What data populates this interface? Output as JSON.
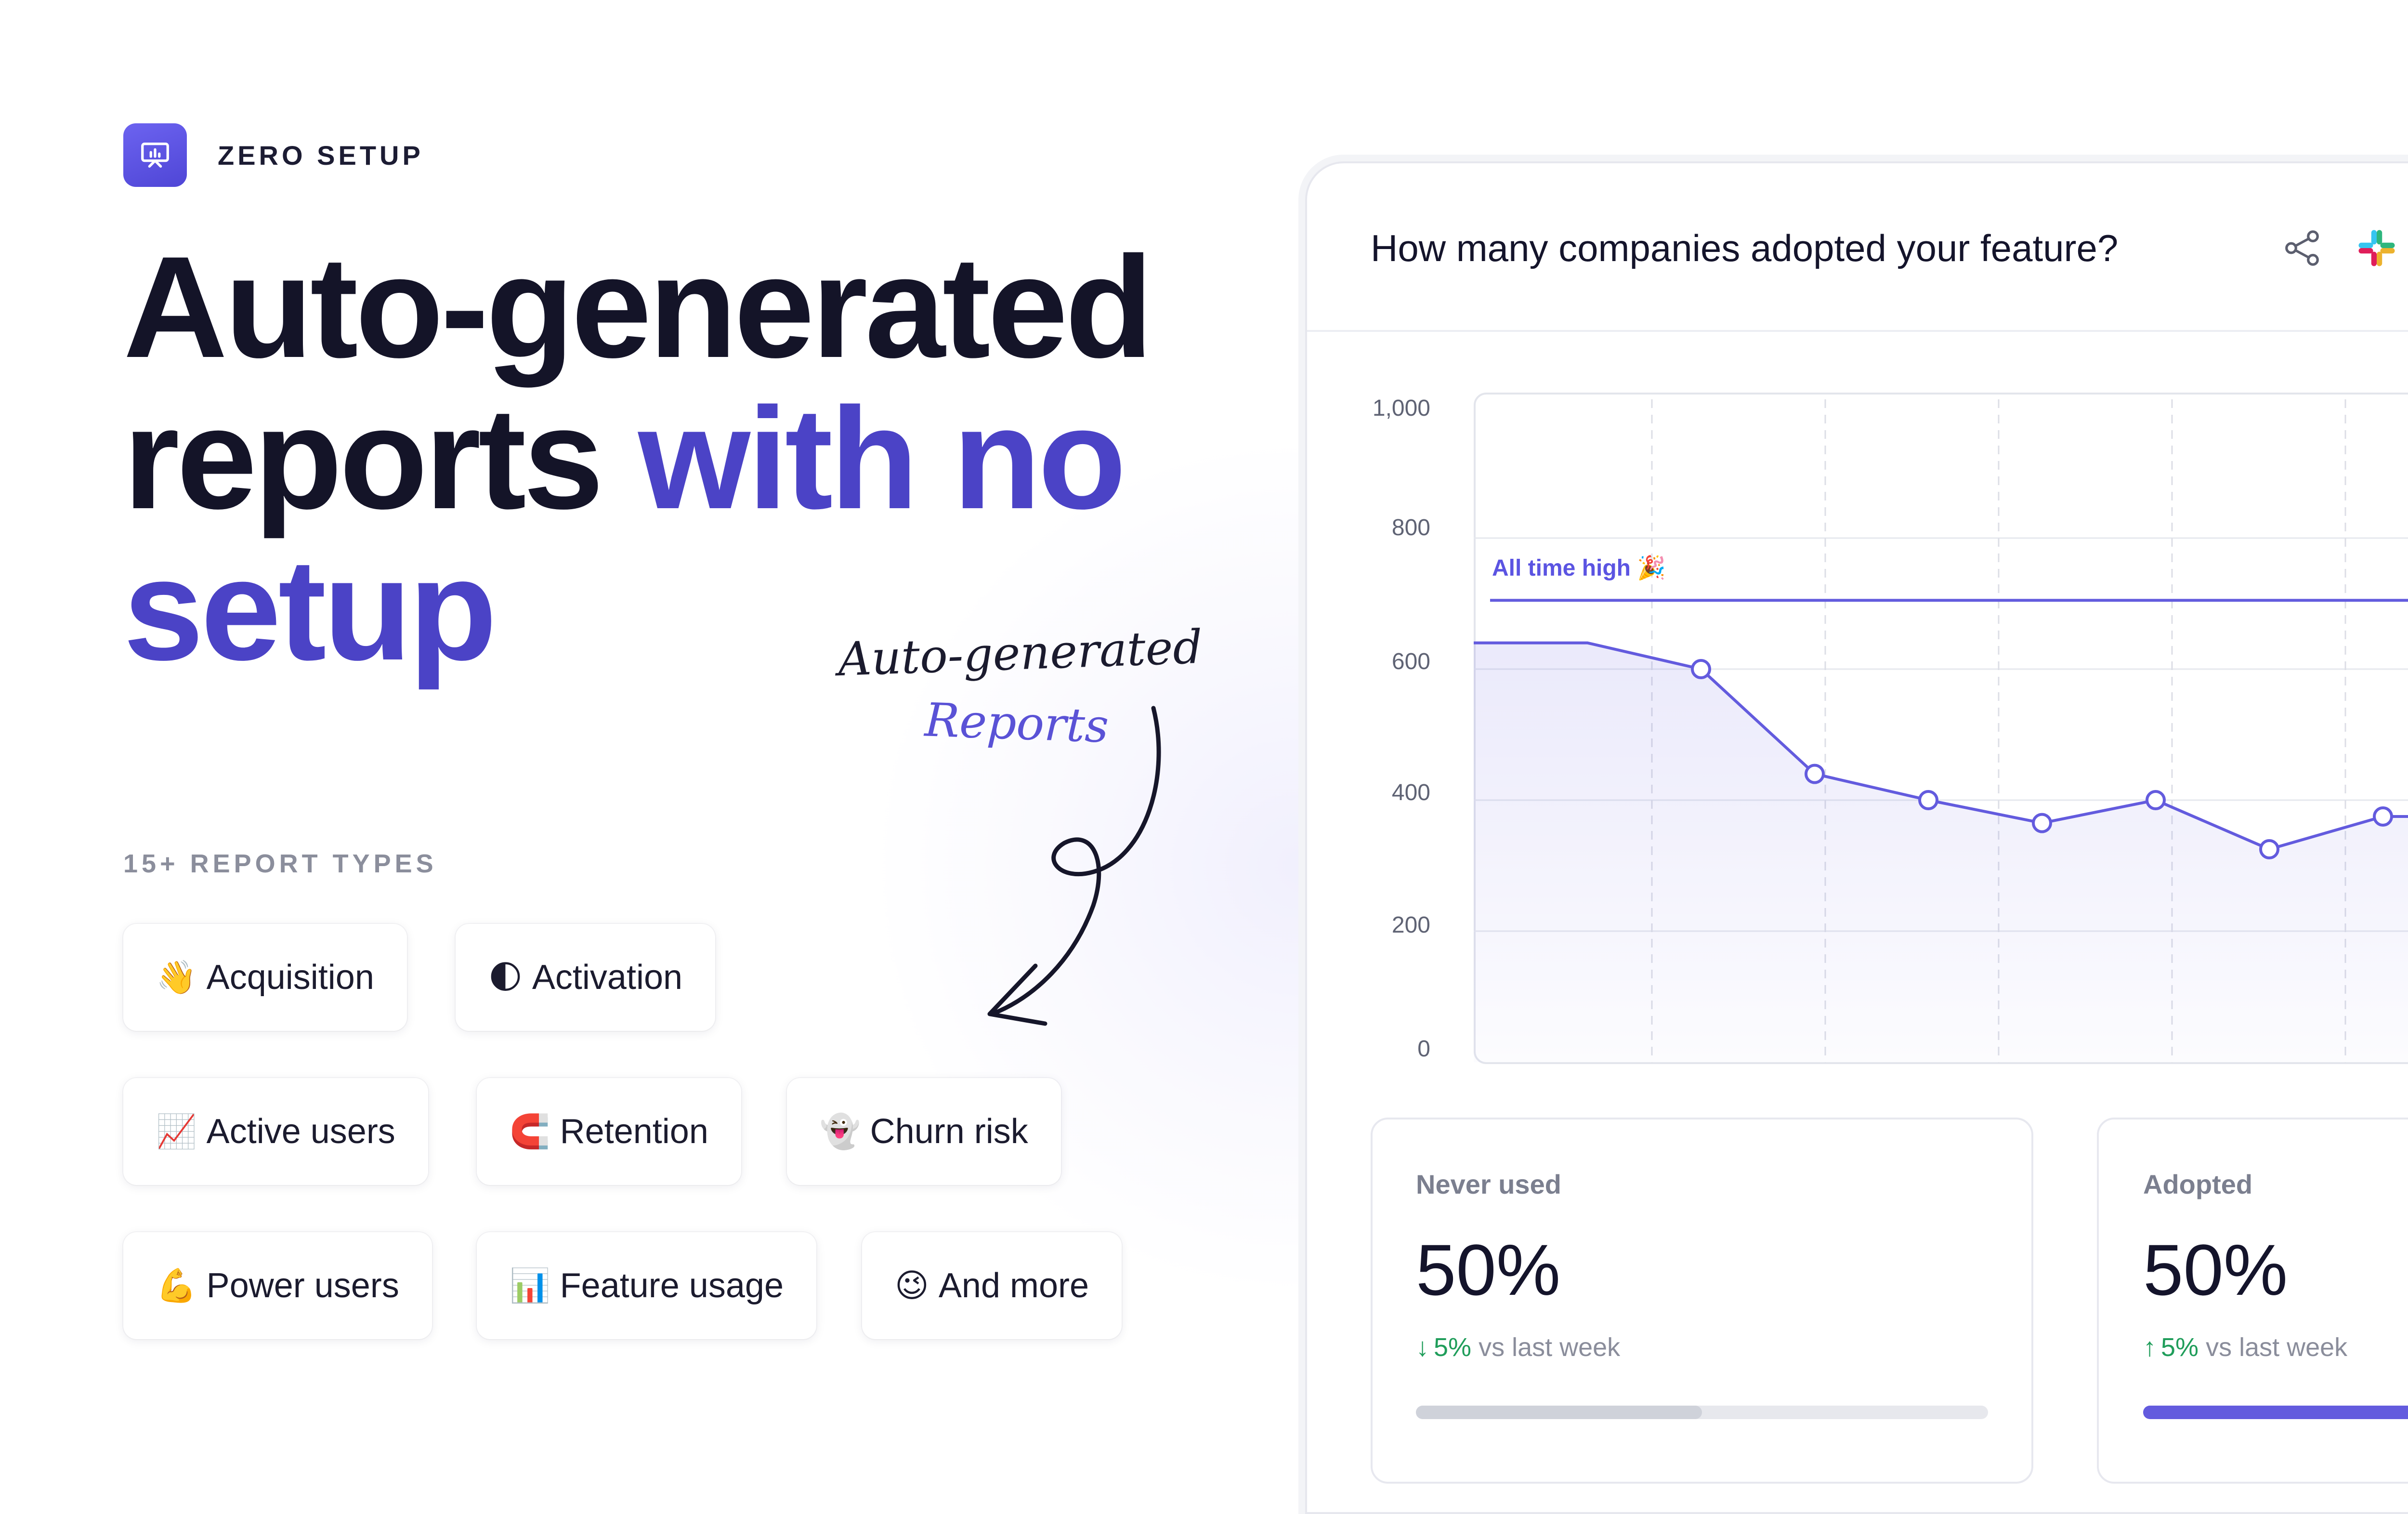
{
  "badge": {
    "icon": "presentation-chart-icon",
    "label": "ZERO SETUP",
    "color": "#5b52e6"
  },
  "headline": {
    "line1": "Auto-generated",
    "line2_plain": "reports ",
    "line2_accent": "with no",
    "line3_accent": "setup"
  },
  "annotation": {
    "line1": "Auto-generated",
    "line2": "Reports"
  },
  "report_types": {
    "label": "15+ REPORT TYPES",
    "chips": [
      {
        "emoji": "👋",
        "label": "Acquisition"
      },
      {
        "emoji": "🌓",
        "label": "Activation"
      },
      {
        "emoji": "📈",
        "label": "Active users"
      },
      {
        "emoji": "🧲",
        "label": "Retention"
      },
      {
        "emoji": "👻",
        "label": "Churn risk"
      },
      {
        "emoji": "💪",
        "label": "Power users"
      },
      {
        "emoji": "📊",
        "label": "Feature usage"
      },
      {
        "emoji": "😉",
        "label": "And more"
      }
    ]
  },
  "report_card": {
    "title": "How many companies adopted your feature?",
    "share_icon": "share-icon",
    "slack_icon": "slack-icon"
  },
  "chart_data": {
    "type": "area",
    "title": "",
    "y_ticks": [
      "1,000",
      "800",
      "600",
      "400",
      "200",
      "0"
    ],
    "ylim": [
      0,
      1000
    ],
    "series": [
      {
        "values": [
          640,
          640,
          600,
          440,
          400,
          365,
          400,
          325,
          375,
          375
        ]
      }
    ],
    "reference_line": {
      "label": "All time high 🎉",
      "value": 705
    },
    "grid": true,
    "line_color": "#635bde"
  },
  "stats": [
    {
      "label": "Never used",
      "value": "50%",
      "delta_arrow": "↓",
      "delta": "5%",
      "delta_suffix": "vs last week",
      "progress": 0.5,
      "bar_color": "#cfd2da"
    },
    {
      "label": "Adopted",
      "value": "50%",
      "delta_arrow": "↑",
      "delta": "5%",
      "delta_suffix": "vs last week",
      "progress": 1.0,
      "bar_color": "#635bde"
    }
  ]
}
